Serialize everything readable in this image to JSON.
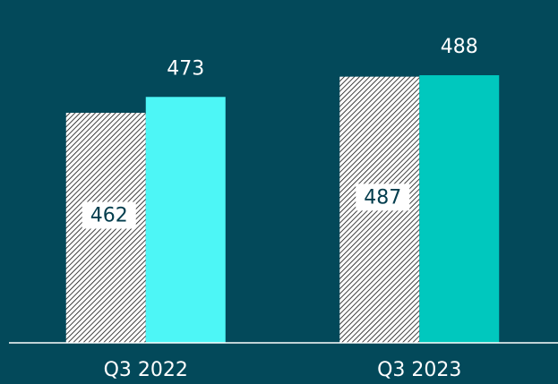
{
  "chart_data": {
    "type": "bar",
    "categories": [
      "Q3 2022",
      "Q3 2023"
    ],
    "series": [
      {
        "values": [
          462,
          487
        ],
        "pattern": "hatch"
      },
      {
        "values": [
          473,
          488
        ],
        "colors": [
          "#4df6f6",
          "#00c8be"
        ]
      }
    ],
    "ylim": [
      303,
      540
    ]
  }
}
